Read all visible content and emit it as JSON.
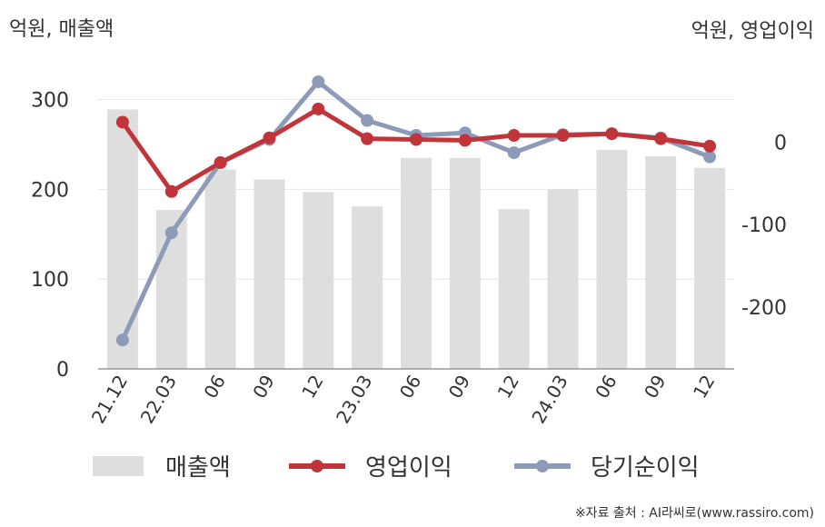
{
  "left_unit": "억원, 매출액",
  "right_unit": "억원, 영업이익",
  "source": "※자료 출처 : AI라씨로(www.rassiro.com)",
  "colors": {
    "revenue": "#dedede",
    "operating_profit": "#c0343a",
    "net_income": "#8e9bb8",
    "grid": "#e6e6e6",
    "axis": "#999999"
  },
  "chart_data": {
    "type": "bar",
    "categories": [
      "21.12",
      "22.03",
      "06",
      "09",
      "12",
      "23.03",
      "06",
      "09",
      "12",
      "24.03",
      "06",
      "09",
      "12"
    ],
    "left_axis": {
      "ticks": [
        0,
        100,
        200,
        300
      ],
      "ylim": [
        0,
        330
      ]
    },
    "right_axis": {
      "ticks": [
        0,
        -100,
        -200
      ],
      "ylim": [
        -275,
        84
      ]
    },
    "series": [
      {
        "name": "매출액",
        "kind": "bar",
        "axis": "left",
        "values": [
          289,
          177,
          222,
          211,
          197,
          181,
          235,
          235,
          178,
          200,
          244,
          237,
          224
        ]
      },
      {
        "name": "영업이익",
        "kind": "line",
        "axis": "right",
        "values": [
          24,
          -60,
          -25,
          5,
          40,
          4,
          3,
          2,
          8,
          8,
          10,
          4,
          -5
        ]
      },
      {
        "name": "당기순이익",
        "kind": "line",
        "axis": "right",
        "values": [
          -240,
          -110,
          -25,
          3,
          73,
          26,
          8,
          11,
          -13,
          9,
          10,
          5,
          -18
        ]
      }
    ]
  }
}
